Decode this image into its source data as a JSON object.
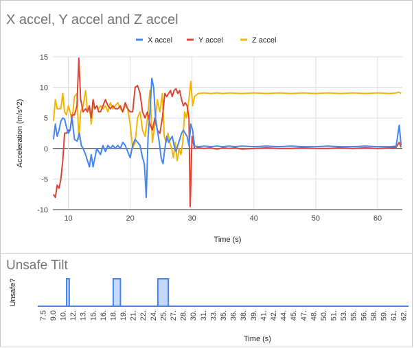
{
  "chart_data": [
    {
      "type": "line",
      "title": "X accel, Y accel and Z accel",
      "xlabel": "Time (s)",
      "ylabel": "Acceleration (m/s^2)",
      "xlim": [
        7.5,
        64
      ],
      "ylim": [
        -10,
        15
      ],
      "x_ticks": [
        10,
        20,
        30,
        40,
        50,
        60
      ],
      "y_ticks": [
        -10,
        -5,
        0,
        5,
        10,
        15
      ],
      "legend_position": "top",
      "grid": true,
      "series": [
        {
          "name": "X accel",
          "color": "#4285f4",
          "points": [
            [
              7.6,
              1.5
            ],
            [
              7.9,
              4
            ],
            [
              8.2,
              2
            ],
            [
              8.5,
              3
            ],
            [
              8.8,
              4.5
            ],
            [
              9.1,
              5
            ],
            [
              9.4,
              4.8
            ],
            [
              9.7,
              3.5
            ],
            [
              10,
              2.5
            ],
            [
              10.3,
              3
            ],
            [
              10.6,
              5
            ],
            [
              11,
              1.5
            ],
            [
              11.4,
              1.2
            ],
            [
              11.8,
              2.5
            ],
            [
              12.1,
              0.5
            ],
            [
              12.4,
              0
            ],
            [
              12.8,
              -1
            ],
            [
              13.1,
              -2
            ],
            [
              13.4,
              -3
            ],
            [
              13.7,
              -1
            ],
            [
              14,
              -3
            ],
            [
              14.3,
              -1.5
            ],
            [
              14.6,
              0
            ],
            [
              14.9,
              -0.5
            ],
            [
              15.2,
              -1
            ],
            [
              15.6,
              0.5
            ],
            [
              16,
              -0.5
            ],
            [
              16.4,
              0.5
            ],
            [
              16.8,
              0
            ],
            [
              17.2,
              0.5
            ],
            [
              17.6,
              0
            ],
            [
              18,
              0.5
            ],
            [
              18.4,
              0
            ],
            [
              18.8,
              1
            ],
            [
              19.2,
              0.5
            ],
            [
              19.6,
              -0.5
            ],
            [
              20,
              -1.5
            ],
            [
              20.4,
              0.5
            ],
            [
              20.8,
              1.5
            ],
            [
              21.2,
              1
            ],
            [
              21.6,
              0.5
            ],
            [
              22,
              -1.5
            ],
            [
              22.3,
              -2.5
            ],
            [
              22.6,
              -8
            ],
            [
              22.9,
              2
            ],
            [
              23.2,
              6
            ],
            [
              23.5,
              11.5
            ],
            [
              23.8,
              10
            ],
            [
              24.1,
              5
            ],
            [
              24.4,
              3
            ],
            [
              24.7,
              1
            ],
            [
              25,
              -1.5
            ],
            [
              25.3,
              -2.5
            ],
            [
              25.6,
              0
            ],
            [
              25.9,
              2
            ],
            [
              26.2,
              1
            ],
            [
              26.5,
              1.5
            ],
            [
              26.8,
              2
            ],
            [
              27.1,
              0.5
            ],
            [
              27.4,
              -0.5
            ],
            [
              27.7,
              0.5
            ],
            [
              28,
              1.5
            ],
            [
              28.3,
              2.5
            ],
            [
              28.6,
              3
            ],
            [
              28.9,
              2.5
            ],
            [
              29.2,
              2
            ],
            [
              29.5,
              0.5
            ],
            [
              29.8,
              4
            ],
            [
              30.1,
              3
            ],
            [
              30.4,
              0.4
            ],
            [
              31,
              0.3
            ],
            [
              32,
              0.4
            ],
            [
              33,
              0.3
            ],
            [
              34,
              0.4
            ],
            [
              35,
              0.3
            ],
            [
              36,
              0.4
            ],
            [
              37,
              0.3
            ],
            [
              38,
              0.4
            ],
            [
              40,
              0.3
            ],
            [
              42,
              0.4
            ],
            [
              44,
              0.3
            ],
            [
              46,
              0.4
            ],
            [
              48,
              0.3
            ],
            [
              50,
              0.3
            ],
            [
              52,
              0.4
            ],
            [
              54,
              0.3
            ],
            [
              56,
              0.3
            ],
            [
              58,
              0.4
            ],
            [
              60,
              0.3
            ],
            [
              62,
              0.3
            ],
            [
              63,
              0.4
            ],
            [
              63.5,
              3.8
            ],
            [
              63.8,
              0.5
            ]
          ]
        },
        {
          "name": "Y accel",
          "color": "#db4437",
          "points": [
            [
              7.6,
              -7.5
            ],
            [
              7.9,
              -8
            ],
            [
              8.2,
              -6
            ],
            [
              8.5,
              -6.5
            ],
            [
              8.8,
              -5
            ],
            [
              9.1,
              -2
            ],
            [
              9.4,
              2.5
            ],
            [
              9.7,
              2.5
            ],
            [
              10,
              3
            ],
            [
              10.3,
              3
            ],
            [
              10.6,
              5.5
            ],
            [
              11,
              5.5
            ],
            [
              11.4,
              7
            ],
            [
              11.7,
              14.8
            ],
            [
              12,
              8
            ],
            [
              12.4,
              6
            ],
            [
              12.8,
              6.5
            ],
            [
              13.1,
              6
            ],
            [
              13.4,
              7
            ],
            [
              13.7,
              5
            ],
            [
              14,
              8
            ],
            [
              14.3,
              6.5
            ],
            [
              14.6,
              7
            ],
            [
              14.9,
              6
            ],
            [
              15.2,
              6
            ],
            [
              15.6,
              7
            ],
            [
              16,
              8
            ],
            [
              16.4,
              7
            ],
            [
              16.8,
              6.5
            ],
            [
              17.2,
              7
            ],
            [
              17.6,
              6.5
            ],
            [
              18,
              6.5
            ],
            [
              18.4,
              7
            ],
            [
              18.8,
              6
            ],
            [
              19.2,
              7.5
            ],
            [
              19.6,
              6.5
            ],
            [
              20,
              6
            ],
            [
              20.4,
              6
            ],
            [
              20.8,
              10
            ],
            [
              21.2,
              10.3
            ],
            [
              21.6,
              9
            ],
            [
              22,
              6
            ],
            [
              22.4,
              5
            ],
            [
              22.8,
              6
            ],
            [
              23.2,
              4
            ],
            [
              23.6,
              3
            ],
            [
              24,
              5
            ],
            [
              24.4,
              3
            ],
            [
              24.8,
              2.5
            ],
            [
              25.2,
              5
            ],
            [
              25.6,
              9
            ],
            [
              25.9,
              8.5
            ],
            [
              26.2,
              9
            ],
            [
              26.5,
              9.5
            ],
            [
              26.8,
              8.5
            ],
            [
              27.1,
              9.5
            ],
            [
              27.4,
              9.8
            ],
            [
              27.7,
              9
            ],
            [
              28,
              9.5
            ],
            [
              28.3,
              8
            ],
            [
              28.6,
              7
            ],
            [
              28.9,
              7.5
            ],
            [
              29.2,
              7
            ],
            [
              29.5,
              5
            ],
            [
              29.7,
              -9.5
            ],
            [
              30,
              2
            ],
            [
              30.4,
              0
            ],
            [
              31,
              0.1
            ],
            [
              32,
              0
            ],
            [
              33,
              0.1
            ],
            [
              34,
              -0.1
            ],
            [
              35,
              0.1
            ],
            [
              36,
              0
            ],
            [
              37,
              0.1
            ],
            [
              38,
              -0.1
            ],
            [
              40,
              0
            ],
            [
              42,
              0.1
            ],
            [
              44,
              0
            ],
            [
              46,
              0
            ],
            [
              48,
              0.1
            ],
            [
              50,
              0
            ],
            [
              52,
              0
            ],
            [
              54,
              0.1
            ],
            [
              56,
              0
            ],
            [
              58,
              0.1
            ],
            [
              60,
              0
            ],
            [
              62,
              0.1
            ],
            [
              63,
              0.2
            ],
            [
              63.5,
              1
            ],
            [
              63.8,
              0.2
            ]
          ]
        },
        {
          "name": "Z accel",
          "color": "#f4b400",
          "points": [
            [
              7.6,
              4.5
            ],
            [
              7.9,
              8
            ],
            [
              8.2,
              6.5
            ],
            [
              8.5,
              6.5
            ],
            [
              8.8,
              6.5
            ],
            [
              9.1,
              9
            ],
            [
              9.4,
              6
            ],
            [
              9.7,
              5.5
            ],
            [
              10,
              7
            ],
            [
              10.3,
              6
            ],
            [
              10.6,
              4.5
            ],
            [
              11,
              8.5
            ],
            [
              11.4,
              9
            ],
            [
              11.7,
              1.5
            ],
            [
              12,
              6
            ],
            [
              12.4,
              7
            ],
            [
              12.8,
              9.5
            ],
            [
              13.1,
              6
            ],
            [
              13.4,
              7
            ],
            [
              13.7,
              4
            ],
            [
              14,
              7
            ],
            [
              14.3,
              6.5
            ],
            [
              14.6,
              7
            ],
            [
              14.9,
              6.5
            ],
            [
              15.2,
              7
            ],
            [
              15.6,
              6.5
            ],
            [
              16,
              7
            ],
            [
              16.4,
              6
            ],
            [
              16.8,
              7.5
            ],
            [
              17.2,
              6.5
            ],
            [
              17.6,
              7
            ],
            [
              18,
              7.5
            ],
            [
              18.4,
              6.5
            ],
            [
              18.8,
              6
            ],
            [
              19.2,
              7
            ],
            [
              19.6,
              6.5
            ],
            [
              20,
              4
            ],
            [
              20.4,
              0
            ],
            [
              20.8,
              1
            ],
            [
              21.2,
              5
            ],
            [
              21.6,
              6
            ],
            [
              22,
              3
            ],
            [
              22.4,
              2
            ],
            [
              22.8,
              5
            ],
            [
              23.2,
              9.5
            ],
            [
              23.6,
              1
            ],
            [
              24,
              4
            ],
            [
              24.4,
              8
            ],
            [
              24.8,
              6
            ],
            [
              25.2,
              9
            ],
            [
              25.5,
              2
            ],
            [
              25.8,
              1
            ],
            [
              26.1,
              2.5
            ],
            [
              26.4,
              1
            ],
            [
              26.7,
              0
            ],
            [
              27,
              -1.5
            ],
            [
              27.3,
              1
            ],
            [
              27.6,
              -2
            ],
            [
              27.9,
              0
            ],
            [
              28.2,
              -1
            ],
            [
              28.5,
              1
            ],
            [
              28.8,
              6
            ],
            [
              29.1,
              5
            ],
            [
              29.5,
              8
            ],
            [
              29.8,
              11
            ],
            [
              30.1,
              7
            ],
            [
              30.4,
              8.5
            ],
            [
              31,
              9
            ],
            [
              32,
              9.1
            ],
            [
              33,
              9
            ],
            [
              34,
              9.1
            ],
            [
              35,
              9
            ],
            [
              36,
              9.1
            ],
            [
              38,
              9
            ],
            [
              40,
              9.1
            ],
            [
              42,
              9
            ],
            [
              44,
              9.1
            ],
            [
              46,
              9
            ],
            [
              48,
              9.1
            ],
            [
              50,
              9
            ],
            [
              52,
              9.1
            ],
            [
              54,
              9
            ],
            [
              56,
              9.1
            ],
            [
              58,
              9
            ],
            [
              60,
              9.1
            ],
            [
              62,
              9
            ],
            [
              63,
              9.1
            ],
            [
              63.5,
              9.2
            ],
            [
              63.8,
              9
            ]
          ]
        }
      ]
    },
    {
      "type": "area",
      "title": "Unsafe Tilt",
      "xlabel": "Time (s)",
      "ylabel": "Unsafe?",
      "color": "#4285f4",
      "categories": [
        "7.5",
        "9.0",
        "10.",
        "12.",
        "13.",
        "15.",
        "16.",
        "18.",
        "19.",
        "21.",
        "22.",
        "24.",
        "25.",
        "27.",
        "28.",
        "30.",
        "31.",
        "33.",
        "35.",
        "36.",
        "38.",
        "39.",
        "41.",
        "42.",
        "44.",
        "45.",
        "47.",
        "48.",
        "50.",
        "51.",
        "53.",
        "55.",
        "56.",
        "58.",
        "59.",
        "61.",
        "62."
      ],
      "x_range": [
        7.5,
        64
      ],
      "unsafe_intervals": [
        [
          11.9,
          12.3
        ],
        [
          19.0,
          20.1
        ],
        [
          25.8,
          27.4
        ]
      ]
    }
  ]
}
